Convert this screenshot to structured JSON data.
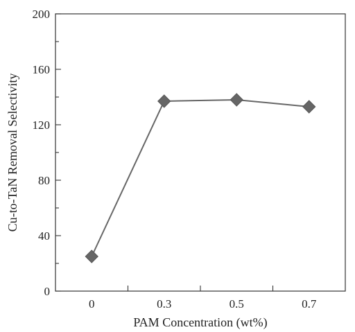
{
  "chart_data": {
    "type": "line",
    "title": "",
    "xlabel": "PAM Concentration (wt%)",
    "ylabel": "Cu-to-TaN Removal Selectivity",
    "categories": [
      "0",
      "0.3",
      "0.5",
      "0.7"
    ],
    "series": [
      {
        "values": [
          25,
          137,
          138,
          133
        ]
      }
    ],
    "ylim": [
      0,
      200
    ],
    "yticks": [
      0,
      40,
      80,
      120,
      160,
      200
    ],
    "grid": false,
    "legend": "none",
    "marker": "diamond",
    "colors": {
      "line": "#666666",
      "marker": "#666666",
      "axis": "#333333"
    }
  }
}
